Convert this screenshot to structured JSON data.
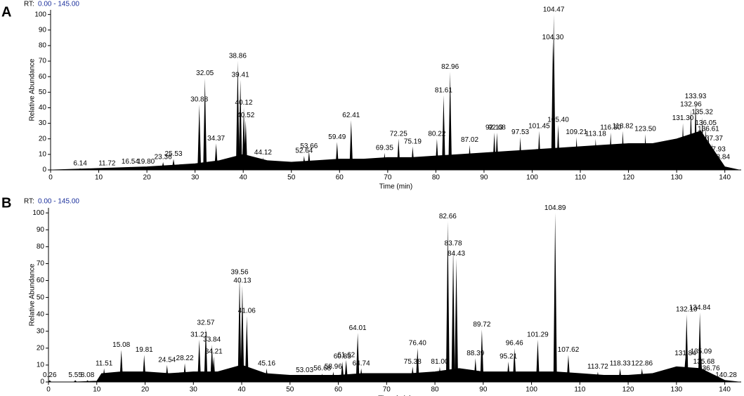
{
  "chart_data": [
    {
      "type": "line",
      "panel_label": "A",
      "range_prefix": "RT:",
      "range_text": "0.00 - 145.00",
      "x_label": "Time (min)",
      "y_label": "Relative Abundance",
      "color": "#000000",
      "xlim": [
        0,
        143.4
      ],
      "ylim": [
        0,
        103
      ],
      "xticks": [
        0,
        10,
        20,
        30,
        40,
        50,
        60,
        70,
        80,
        90,
        100,
        110,
        120,
        130,
        140
      ],
      "yticks": [
        0,
        10,
        20,
        30,
        40,
        50,
        60,
        70,
        80,
        90,
        100
      ],
      "x": [
        0,
        5,
        10,
        15,
        20,
        25,
        30,
        35,
        40,
        45,
        50,
        55,
        60,
        65,
        70,
        75,
        80,
        85,
        90,
        95,
        100,
        105,
        110,
        115,
        120,
        125,
        130,
        135,
        140,
        143
      ],
      "values": [
        0,
        0.5,
        1,
        1.5,
        2,
        3,
        4,
        6,
        10,
        6,
        5,
        6,
        7,
        7,
        8,
        8,
        9,
        10,
        11,
        12,
        13,
        14,
        15,
        16,
        17,
        17,
        20,
        25,
        2,
        0
      ],
      "peaks": [
        {
          "x": 6.14,
          "y": 1,
          "label": "6.14"
        },
        {
          "x": 11.72,
          "y": 1,
          "label": "11.72"
        },
        {
          "x": 16.54,
          "y": 2,
          "label": "16.54"
        },
        {
          "x": 19.8,
          "y": 2,
          "label": "19.80"
        },
        {
          "x": 23.36,
          "y": 5,
          "label": "23.36"
        },
        {
          "x": 25.53,
          "y": 7,
          "label": "25.53"
        },
        {
          "x": 30.88,
          "y": 42,
          "label": "30.88"
        },
        {
          "x": 32.05,
          "y": 59,
          "label": "32.05"
        },
        {
          "x": 34.37,
          "y": 17,
          "label": "34.37"
        },
        {
          "x": 38.86,
          "y": 70,
          "label": "38.86"
        },
        {
          "x": 39.41,
          "y": 58,
          "label": "39.41"
        },
        {
          "x": 40.12,
          "y": 40,
          "label": "40.12"
        },
        {
          "x": 40.52,
          "y": 32,
          "label": "40.52"
        },
        {
          "x": 44.12,
          "y": 8,
          "label": "44.12"
        },
        {
          "x": 52.64,
          "y": 9,
          "label": "52.64"
        },
        {
          "x": 53.66,
          "y": 12,
          "label": "53.66"
        },
        {
          "x": 59.49,
          "y": 18,
          "label": "59.49"
        },
        {
          "x": 62.41,
          "y": 32,
          "label": "62.41"
        },
        {
          "x": 69.35,
          "y": 11,
          "label": "69.35"
        },
        {
          "x": 72.25,
          "y": 20,
          "label": "72.25"
        },
        {
          "x": 75.19,
          "y": 15,
          "label": "75.19"
        },
        {
          "x": 80.22,
          "y": 20,
          "label": "80.22"
        },
        {
          "x": 81.61,
          "y": 48,
          "label": "81.61"
        },
        {
          "x": 82.96,
          "y": 63,
          "label": "82.96"
        },
        {
          "x": 87.02,
          "y": 16,
          "label": "87.02"
        },
        {
          "x": 92.13,
          "y": 24,
          "label": "92.13"
        },
        {
          "x": 92.68,
          "y": 24,
          "label": "92.68"
        },
        {
          "x": 97.53,
          "y": 21,
          "label": "97.53"
        },
        {
          "x": 101.45,
          "y": 25,
          "label": "101.45"
        },
        {
          "x": 104.3,
          "y": 82,
          "label": "104.30"
        },
        {
          "x": 104.47,
          "y": 100,
          "label": "104.47"
        },
        {
          "x": 105.4,
          "y": 29,
          "label": "105.40"
        },
        {
          "x": 109.21,
          "y": 21,
          "label": "109.21"
        },
        {
          "x": 113.18,
          "y": 20,
          "label": "113.18"
        },
        {
          "x": 116.3,
          "y": 24,
          "label": "116.30"
        },
        {
          "x": 118.82,
          "y": 25,
          "label": "118.82"
        },
        {
          "x": 123.5,
          "y": 23,
          "label": "123.50"
        },
        {
          "x": 131.3,
          "y": 30,
          "label": "131.30"
        },
        {
          "x": 132.96,
          "y": 39,
          "label": "132.96"
        },
        {
          "x": 133.93,
          "y": 44,
          "label": "133.93"
        },
        {
          "x": 135.32,
          "y": 34,
          "label": "135.32"
        },
        {
          "x": 136.05,
          "y": 27,
          "label": "136.05"
        },
        {
          "x": 136.61,
          "y": 23,
          "label": "136.61"
        },
        {
          "x": 137.37,
          "y": 17,
          "label": "137.37"
        },
        {
          "x": 137.93,
          "y": 10,
          "label": "137.93"
        },
        {
          "x": 138.84,
          "y": 5,
          "label": "138.84"
        }
      ]
    },
    {
      "type": "line",
      "panel_label": "B",
      "range_prefix": "RT:",
      "range_text": "0.00 - 145.00",
      "x_label": "Time (min)",
      "y_label": "Relative Abundance",
      "color": "#000000",
      "xlim": [
        0,
        143.4
      ],
      "ylim": [
        0,
        103
      ],
      "xticks": [
        0,
        10,
        20,
        30,
        40,
        50,
        60,
        70,
        80,
        90,
        100,
        110,
        120,
        130,
        140
      ],
      "yticks": [
        0,
        10,
        20,
        30,
        40,
        50,
        60,
        70,
        80,
        90,
        100
      ],
      "x": [
        0,
        5,
        10,
        11,
        15,
        20,
        25,
        30,
        35,
        40,
        45,
        50,
        55,
        60,
        65,
        70,
        75,
        80,
        85,
        90,
        95,
        100,
        105,
        110,
        115,
        120,
        125,
        130,
        135,
        140,
        143
      ],
      "values": [
        0,
        0,
        0.5,
        5,
        6,
        6,
        5,
        6,
        6,
        10,
        5,
        4,
        4,
        4,
        5,
        5,
        5,
        6,
        8,
        6,
        6,
        6,
        6,
        5,
        4,
        4,
        5,
        9,
        8,
        1,
        0
      ],
      "peaks": [
        {
          "x": 0.26,
          "y": 1,
          "label": "0.26"
        },
        {
          "x": 5.55,
          "y": 1,
          "label": "5.55"
        },
        {
          "x": 8.08,
          "y": 1,
          "label": "8.08"
        },
        {
          "x": 11.51,
          "y": 8,
          "label": "11.51"
        },
        {
          "x": 15.08,
          "y": 19,
          "label": "15.08"
        },
        {
          "x": 19.81,
          "y": 16,
          "label": "19.81"
        },
        {
          "x": 24.54,
          "y": 10,
          "label": "24.54"
        },
        {
          "x": 28.22,
          "y": 11,
          "label": "28.22"
        },
        {
          "x": 31.21,
          "y": 25,
          "label": "31.21"
        },
        {
          "x": 32.57,
          "y": 32,
          "label": "32.57"
        },
        {
          "x": 33.84,
          "y": 22,
          "label": "33.84"
        },
        {
          "x": 34.21,
          "y": 15,
          "label": "34.21"
        },
        {
          "x": 39.56,
          "y": 62,
          "label": "39.56"
        },
        {
          "x": 40.13,
          "y": 57,
          "label": "40.13"
        },
        {
          "x": 41.06,
          "y": 39,
          "label": "41.06"
        },
        {
          "x": 45.16,
          "y": 8,
          "label": "45.16"
        },
        {
          "x": 53.03,
          "y": 4,
          "label": "53.03"
        },
        {
          "x": 56.68,
          "y": 5,
          "label": "56.68"
        },
        {
          "x": 58.96,
          "y": 6,
          "label": "58.96"
        },
        {
          "x": 60.83,
          "y": 12,
          "label": "60.83"
        },
        {
          "x": 61.62,
          "y": 13,
          "label": "61.62"
        },
        {
          "x": 64.01,
          "y": 29,
          "label": "64.01"
        },
        {
          "x": 64.74,
          "y": 8,
          "label": "64.74"
        },
        {
          "x": 75.38,
          "y": 9,
          "label": "75.38"
        },
        {
          "x": 76.4,
          "y": 20,
          "label": "76.40"
        },
        {
          "x": 81,
          "y": 9,
          "label": "81.00"
        },
        {
          "x": 82.66,
          "y": 95,
          "label": "82.66"
        },
        {
          "x": 83.78,
          "y": 79,
          "label": "83.78"
        },
        {
          "x": 84.43,
          "y": 73,
          "label": "84.43"
        },
        {
          "x": 88.39,
          "y": 14,
          "label": "88.39"
        },
        {
          "x": 89.72,
          "y": 31,
          "label": "89.72"
        },
        {
          "x": 95.21,
          "y": 12,
          "label": "95.21"
        },
        {
          "x": 96.46,
          "y": 20,
          "label": "96.46"
        },
        {
          "x": 101.29,
          "y": 25,
          "label": "101.29"
        },
        {
          "x": 104.89,
          "y": 100,
          "label": "104.89"
        },
        {
          "x": 107.62,
          "y": 16,
          "label": "107.62"
        },
        {
          "x": 113.72,
          "y": 6,
          "label": "113.72"
        },
        {
          "x": 118.33,
          "y": 8,
          "label": "118.33"
        },
        {
          "x": 122.86,
          "y": 8,
          "label": "122.86"
        },
        {
          "x": 131.84,
          "y": 14,
          "label": "131.84"
        },
        {
          "x": 132.1,
          "y": 40,
          "label": "132.10"
        },
        {
          "x": 134.84,
          "y": 41,
          "label": "134.84"
        },
        {
          "x": 135.09,
          "y": 15,
          "label": "135.09"
        },
        {
          "x": 135.68,
          "y": 9,
          "label": "135.68"
        },
        {
          "x": 136.76,
          "y": 5,
          "label": "136.76"
        },
        {
          "x": 140.28,
          "y": 1,
          "label": "140.28"
        }
      ]
    }
  ]
}
